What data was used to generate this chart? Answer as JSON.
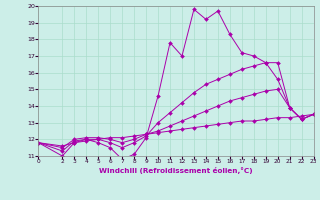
{
  "xlabel": "Windchill (Refroidissement éolien,°C)",
  "xlim": [
    0,
    23
  ],
  "ylim": [
    11,
    20
  ],
  "bg_color": "#cceee8",
  "grid_color": "#aaddcc",
  "line_color": "#aa00aa",
  "xticks": [
    0,
    2,
    3,
    4,
    5,
    6,
    7,
    8,
    9,
    10,
    11,
    12,
    13,
    14,
    15,
    16,
    17,
    18,
    19,
    20,
    21,
    22,
    23
  ],
  "yticks": [
    11,
    12,
    13,
    14,
    15,
    16,
    17,
    18,
    19,
    20
  ],
  "series": [
    {
      "x": [
        0,
        2,
        3,
        4,
        5,
        6,
        7,
        8,
        9,
        10,
        11,
        12,
        13,
        14,
        15,
        16,
        17,
        18,
        19,
        20,
        21,
        22,
        23
      ],
      "y": [
        11.8,
        11.0,
        11.8,
        12.0,
        11.8,
        11.5,
        10.8,
        11.1,
        12.1,
        14.6,
        17.8,
        17.0,
        19.8,
        19.2,
        19.7,
        18.3,
        17.2,
        17.0,
        16.6,
        15.6,
        13.9,
        13.2,
        13.5
      ]
    },
    {
      "x": [
        0,
        2,
        3,
        4,
        5,
        6,
        7,
        8,
        9,
        10,
        11,
        12,
        13,
        14,
        15,
        16,
        17,
        18,
        19,
        20,
        21,
        22,
        23
      ],
      "y": [
        11.8,
        11.3,
        11.9,
        12.0,
        12.0,
        11.8,
        11.5,
        11.8,
        12.2,
        13.0,
        13.6,
        14.2,
        14.8,
        15.3,
        15.6,
        15.9,
        16.2,
        16.4,
        16.6,
        16.6,
        13.9,
        13.2,
        13.5
      ]
    },
    {
      "x": [
        0,
        2,
        3,
        4,
        5,
        6,
        7,
        8,
        9,
        10,
        11,
        12,
        13,
        14,
        15,
        16,
        17,
        18,
        19,
        20,
        21,
        22,
        23
      ],
      "y": [
        11.8,
        11.5,
        12.0,
        12.1,
        12.1,
        12.0,
        11.8,
        12.0,
        12.3,
        12.5,
        12.8,
        13.1,
        13.4,
        13.7,
        14.0,
        14.3,
        14.5,
        14.7,
        14.9,
        15.0,
        13.9,
        13.2,
        13.5
      ]
    },
    {
      "x": [
        0,
        2,
        3,
        4,
        5,
        6,
        7,
        8,
        9,
        10,
        11,
        12,
        13,
        14,
        15,
        16,
        17,
        18,
        19,
        20,
        21,
        22,
        23
      ],
      "y": [
        11.8,
        11.6,
        11.8,
        11.9,
        12.0,
        12.1,
        12.1,
        12.2,
        12.3,
        12.4,
        12.5,
        12.6,
        12.7,
        12.8,
        12.9,
        13.0,
        13.1,
        13.1,
        13.2,
        13.3,
        13.3,
        13.4,
        13.5
      ]
    }
  ]
}
